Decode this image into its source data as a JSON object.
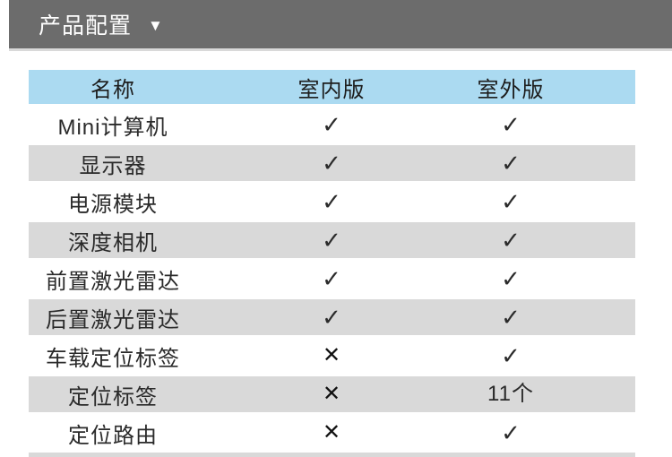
{
  "section_header": {
    "title": "产品配置",
    "caret_icon": "▼"
  },
  "colors": {
    "topbar_bg": "#6c6c6c",
    "table_header_bg": "#abdaf1",
    "row_alt_bg": "#d9d9d9",
    "mark_color": "#2b2b2b"
  },
  "table": {
    "columns": [
      "名称",
      "室内版",
      "室外版"
    ],
    "rows": [
      {
        "name": "Mini计算机",
        "indoor": "✓",
        "outdoor": "✓"
      },
      {
        "name": "显示器",
        "indoor": "✓",
        "outdoor": "✓"
      },
      {
        "name": "电源模块",
        "indoor": "✓",
        "outdoor": "✓"
      },
      {
        "name": "深度相机",
        "indoor": "✓",
        "outdoor": "✓"
      },
      {
        "name": "前置激光雷达",
        "indoor": "✓",
        "outdoor": "✓"
      },
      {
        "name": "后置激光雷达",
        "indoor": "✓",
        "outdoor": "✓"
      },
      {
        "name": "车载定位标签",
        "indoor": "✕",
        "outdoor": "✓"
      },
      {
        "name": "定位标签",
        "indoor": "✕",
        "outdoor": "11个"
      },
      {
        "name": "定位路由",
        "indoor": "✕",
        "outdoor": "✓"
      }
    ]
  }
}
